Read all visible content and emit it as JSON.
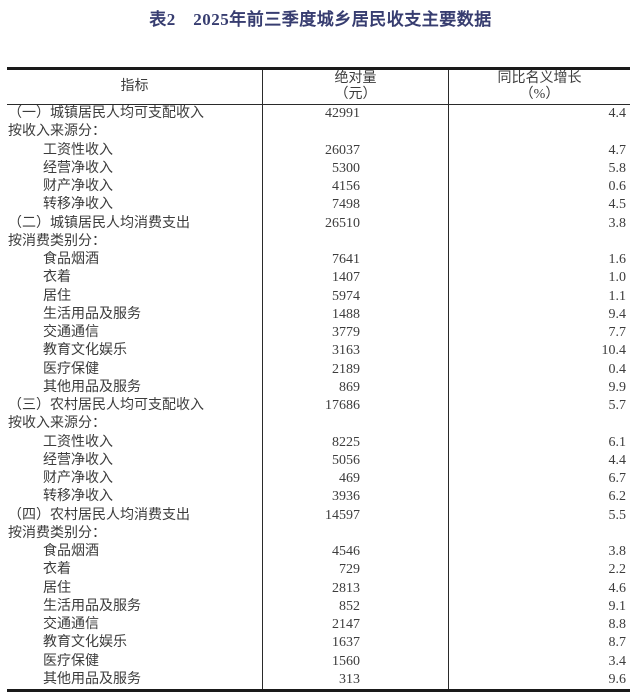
{
  "title": "表2　2025年前三季度城乡居民收支主要数据",
  "table": {
    "header": {
      "indicator": "指标",
      "absolute_line1": "绝对量",
      "absolute_line2": "（元）",
      "growth_line1": "同比名义增长",
      "growth_line2": "（%）"
    },
    "rows": [
      {
        "type": "section",
        "label": "（一）城镇居民人均可支配收入",
        "value": "42991",
        "growth": "4.4"
      },
      {
        "type": "group",
        "label": "按收入来源分：",
        "value": "",
        "growth": ""
      },
      {
        "type": "sub",
        "label": "工资性收入",
        "value": "26037",
        "growth": "4.7"
      },
      {
        "type": "sub",
        "label": "经营净收入",
        "value": "5300",
        "growth": "5.8"
      },
      {
        "type": "sub",
        "label": "财产净收入",
        "value": "4156",
        "growth": "0.6"
      },
      {
        "type": "sub",
        "label": "转移净收入",
        "value": "7498",
        "growth": "4.5"
      },
      {
        "type": "section",
        "label": "（二）城镇居民人均消费支出",
        "value": "26510",
        "growth": "3.8"
      },
      {
        "type": "group",
        "label": "按消费类别分：",
        "value": "",
        "growth": ""
      },
      {
        "type": "sub",
        "label": "食品烟酒",
        "value": "7641",
        "growth": "1.6"
      },
      {
        "type": "sub",
        "label": "衣着",
        "value": "1407",
        "growth": "1.0"
      },
      {
        "type": "sub",
        "label": "居住",
        "value": "5974",
        "growth": "1.1"
      },
      {
        "type": "sub",
        "label": "生活用品及服务",
        "value": "1488",
        "growth": "9.4"
      },
      {
        "type": "sub",
        "label": "交通通信",
        "value": "3779",
        "growth": "7.7"
      },
      {
        "type": "sub",
        "label": "教育文化娱乐",
        "value": "3163",
        "growth": "10.4"
      },
      {
        "type": "sub",
        "label": "医疗保健",
        "value": "2189",
        "growth": "0.4"
      },
      {
        "type": "sub",
        "label": "其他用品及服务",
        "value": "869",
        "growth": "9.9"
      },
      {
        "type": "section",
        "label": "（三）农村居民人均可支配收入",
        "value": "17686",
        "growth": "5.7"
      },
      {
        "type": "group",
        "label": "按收入来源分：",
        "value": "",
        "growth": ""
      },
      {
        "type": "sub",
        "label": "工资性收入",
        "value": "8225",
        "growth": "6.1"
      },
      {
        "type": "sub",
        "label": "经营净收入",
        "value": "5056",
        "growth": "4.4"
      },
      {
        "type": "sub",
        "label": "财产净收入",
        "value": "469",
        "growth": "6.7"
      },
      {
        "type": "sub",
        "label": "转移净收入",
        "value": "3936",
        "growth": "6.2"
      },
      {
        "type": "section",
        "label": "（四）农村居民人均消费支出",
        "value": "14597",
        "growth": "5.5"
      },
      {
        "type": "group",
        "label": "按消费类别分：",
        "value": "",
        "growth": ""
      },
      {
        "type": "sub",
        "label": "食品烟酒",
        "value": "4546",
        "growth": "3.8"
      },
      {
        "type": "sub",
        "label": "衣着",
        "value": "729",
        "growth": "2.2"
      },
      {
        "type": "sub",
        "label": "居住",
        "value": "2813",
        "growth": "4.6"
      },
      {
        "type": "sub",
        "label": "生活用品及服务",
        "value": "852",
        "growth": "9.1"
      },
      {
        "type": "sub",
        "label": "交通通信",
        "value": "2147",
        "growth": "8.8"
      },
      {
        "type": "sub",
        "label": "教育文化娱乐",
        "value": "1637",
        "growth": "8.7"
      },
      {
        "type": "sub",
        "label": "医疗保健",
        "value": "1560",
        "growth": "3.4"
      },
      {
        "type": "sub",
        "label": "其他用品及服务",
        "value": "313",
        "growth": "9.6"
      }
    ]
  },
  "colors": {
    "title": "#373d70",
    "text": "#3c3c3c",
    "border_heavy": "#1a1a1a",
    "border_light": "#2a2a2a",
    "background": "#ffffff"
  }
}
